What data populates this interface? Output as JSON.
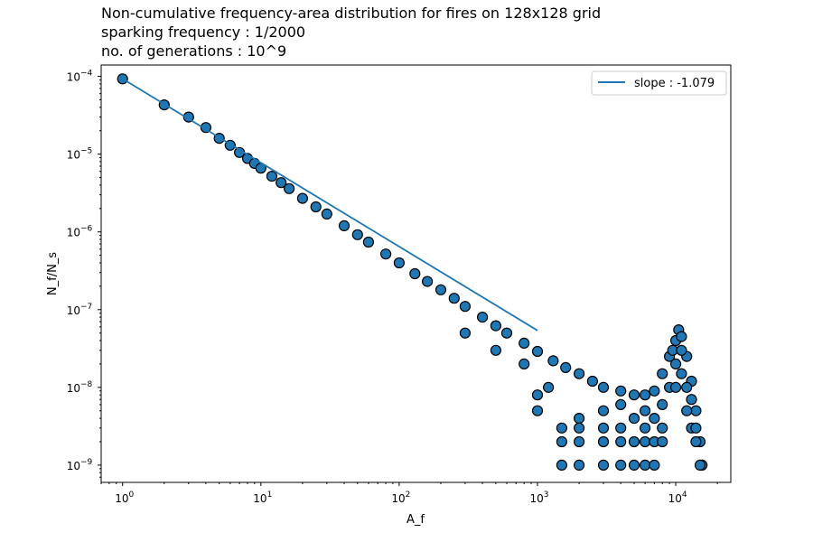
{
  "title_lines": [
    "Non-cumulative frequency-area distribution for fires on 128x128 grid",
    "sparking frequency : 1/2000",
    "no. of generations : 10^9"
  ],
  "chart_data": {
    "type": "scatter",
    "xlabel": "A_f",
    "ylabel": "N_f/N_s",
    "xscale": "log",
    "yscale": "log",
    "xlim": [
      0.7,
      25000
    ],
    "ylim": [
      6e-10,
      0.00014
    ],
    "xticks": [
      {
        "value": 1,
        "base": "10",
        "exp": "0"
      },
      {
        "value": 10,
        "base": "10",
        "exp": "1"
      },
      {
        "value": 100,
        "base": "10",
        "exp": "2"
      },
      {
        "value": 1000,
        "base": "10",
        "exp": "3"
      },
      {
        "value": 10000,
        "base": "10",
        "exp": "4"
      }
    ],
    "yticks": [
      {
        "value": 1e-09,
        "base": "10",
        "exp": "−9"
      },
      {
        "value": 1e-08,
        "base": "10",
        "exp": "−8"
      },
      {
        "value": 1e-07,
        "base": "10",
        "exp": "−7"
      },
      {
        "value": 1e-06,
        "base": "10",
        "exp": "−6"
      },
      {
        "value": 1e-05,
        "base": "10",
        "exp": "−5"
      },
      {
        "value": 0.0001,
        "base": "10",
        "exp": "−4"
      }
    ],
    "grid": false,
    "legend": {
      "position": "top-right",
      "entries": [
        {
          "label": "slope : -1.079",
          "color": "#1f77b4",
          "marker": "line"
        }
      ]
    },
    "fit_line": {
      "label": "slope : -1.079",
      "slope": -1.079,
      "x": [
        1,
        1000
      ],
      "y": [
        9.3e-05,
        5.4e-08
      ],
      "color": "#1f77b4"
    },
    "series": [
      {
        "marker_color": "#1f77b4",
        "edge_color": "#000000",
        "points": [
          [
            1,
            9.3e-05
          ],
          [
            2,
            4.3e-05
          ],
          [
            3,
            3e-05
          ],
          [
            4,
            2.2e-05
          ],
          [
            5,
            1.6e-05
          ],
          [
            6,
            1.3e-05
          ],
          [
            7,
            1.05e-05
          ],
          [
            8,
            8.8e-06
          ],
          [
            9,
            7.6e-06
          ],
          [
            10,
            6.6e-06
          ],
          [
            12,
            5.2e-06
          ],
          [
            14,
            4.3e-06
          ],
          [
            16,
            3.6e-06
          ],
          [
            20,
            2.7e-06
          ],
          [
            25,
            2.1e-06
          ],
          [
            30,
            1.7e-06
          ],
          [
            40,
            1.2e-06
          ],
          [
            50,
            9.2e-07
          ],
          [
            60,
            7.4e-07
          ],
          [
            80,
            5.2e-07
          ],
          [
            100,
            4e-07
          ],
          [
            130,
            2.9e-07
          ],
          [
            160,
            2.3e-07
          ],
          [
            200,
            1.8e-07
          ],
          [
            250,
            1.4e-07
          ],
          [
            300,
            1.1e-07
          ],
          [
            400,
            8e-08
          ],
          [
            500,
            6.2e-08
          ],
          [
            600,
            5e-08
          ],
          [
            800,
            3.7e-08
          ],
          [
            1000,
            2.9e-08
          ],
          [
            1300,
            2.2e-08
          ],
          [
            1600,
            1.8e-08
          ],
          [
            2000,
            1.5e-08
          ],
          [
            2500,
            1.2e-08
          ],
          [
            3000,
            1e-08
          ],
          [
            4000,
            9e-09
          ],
          [
            5000,
            8e-09
          ],
          [
            6000,
            8e-09
          ],
          [
            7000,
            9e-09
          ],
          [
            8000,
            1.5e-08
          ],
          [
            9000,
            2.5e-08
          ],
          [
            10000,
            4e-08
          ],
          [
            10500,
            5.5e-08
          ],
          [
            11000,
            4.5e-08
          ],
          [
            12000,
            2.5e-08
          ],
          [
            13000,
            1.2e-08
          ],
          [
            14000,
            5e-09
          ],
          [
            15000,
            2e-09
          ],
          [
            15500,
            1e-09
          ],
          [
            300,
            5e-08
          ],
          [
            500,
            3e-08
          ],
          [
            800,
            2e-08
          ],
          [
            1000,
            8e-09
          ],
          [
            1000,
            5e-09
          ],
          [
            1200,
            1e-08
          ],
          [
            1500,
            3e-09
          ],
          [
            1500,
            2e-09
          ],
          [
            1500,
            1e-09
          ],
          [
            2000,
            4e-09
          ],
          [
            2000,
            3e-09
          ],
          [
            2000,
            2e-09
          ],
          [
            2000,
            1e-09
          ],
          [
            3000,
            5e-09
          ],
          [
            3000,
            3e-09
          ],
          [
            3000,
            2e-09
          ],
          [
            3000,
            1e-09
          ],
          [
            4000,
            6e-09
          ],
          [
            4000,
            3e-09
          ],
          [
            4000,
            2e-09
          ],
          [
            4000,
            1e-09
          ],
          [
            5000,
            4e-09
          ],
          [
            5000,
            2e-09
          ],
          [
            5000,
            1e-09
          ],
          [
            6000,
            5e-09
          ],
          [
            6000,
            3e-09
          ],
          [
            6000,
            2e-09
          ],
          [
            6000,
            1e-09
          ],
          [
            7000,
            4e-09
          ],
          [
            7000,
            2e-09
          ],
          [
            7000,
            1e-09
          ],
          [
            8000,
            6e-09
          ],
          [
            8000,
            3e-09
          ],
          [
            8000,
            2e-09
          ],
          [
            9000,
            1e-08
          ],
          [
            9500,
            3e-08
          ],
          [
            10000,
            2e-08
          ],
          [
            10000,
            1e-08
          ],
          [
            11000,
            3e-08
          ],
          [
            11000,
            1.5e-08
          ],
          [
            12000,
            1e-08
          ],
          [
            12000,
            5e-09
          ],
          [
            13000,
            7e-09
          ],
          [
            13000,
            3e-09
          ],
          [
            14000,
            3e-09
          ],
          [
            14000,
            2e-09
          ],
          [
            15000,
            1e-09
          ]
        ]
      }
    ]
  }
}
